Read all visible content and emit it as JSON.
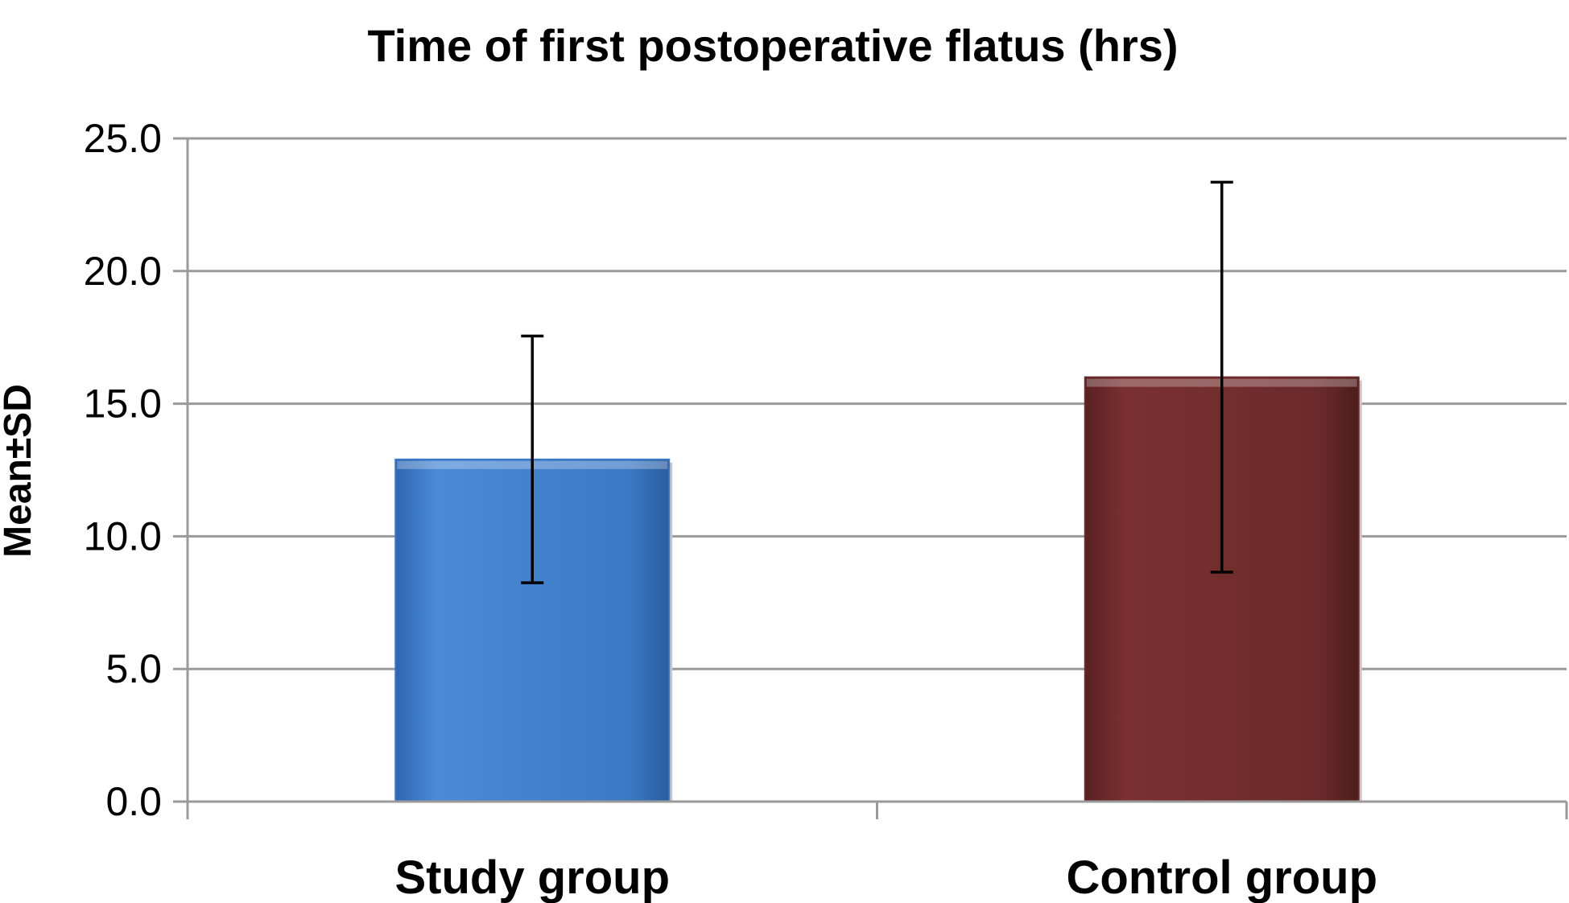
{
  "chart_data": {
    "type": "bar",
    "title": "Time of first  postoperative flatus (hrs)",
    "xlabel": "",
    "ylabel": "Mean±SD",
    "categories": [
      "Study group",
      "Control group"
    ],
    "values": [
      12.9,
      16.0
    ],
    "error_sd": [
      4.65,
      7.35
    ],
    "ylim": [
      0,
      25
    ],
    "yticks": [
      "0.0",
      "5.0",
      "10.0",
      "15.0",
      "20.0",
      "25.0"
    ],
    "ytick_values": [
      0,
      5,
      10,
      15,
      20,
      25
    ],
    "colors": [
      "#3a78c6",
      "#6b2a2a"
    ],
    "grid": true,
    "legend": false
  }
}
